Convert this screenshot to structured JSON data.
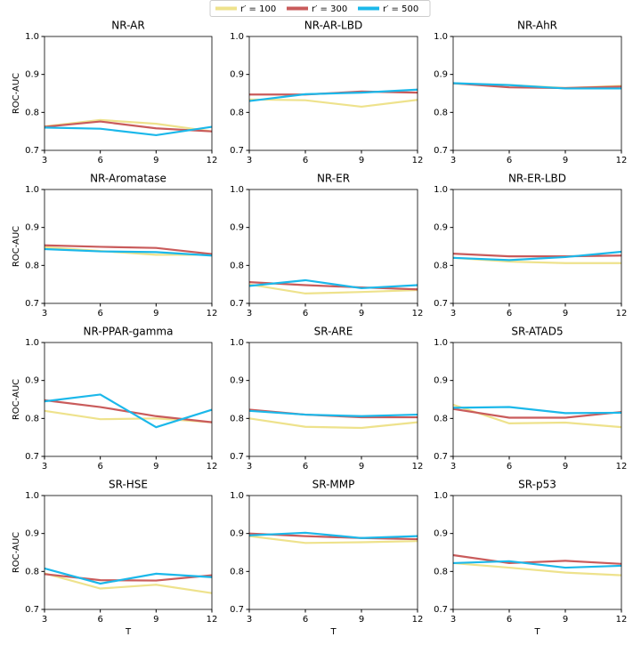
{
  "chart_data": [
    {
      "type": "line",
      "title": "NR-AR",
      "ylabel": "ROC-AUC",
      "x": [
        3,
        6,
        9,
        12
      ],
      "xlim": [
        3,
        12
      ],
      "xticks": [
        3,
        6,
        9,
        12
      ],
      "ylim": [
        0.7,
        1.0
      ],
      "yticks": [
        0.7,
        0.8,
        0.9,
        {
          "value": 1.0,
          "label": "1.0"
        }
      ],
      "series": [
        {
          "name": "r′ = 100",
          "color": "#eee28c",
          "values": [
            0.763,
            0.78,
            0.77,
            0.75
          ]
        },
        {
          "name": "r′ = 300",
          "color": "#c95b5b",
          "values": [
            0.762,
            0.776,
            0.758,
            0.75
          ]
        },
        {
          "name": "r′ = 500",
          "color": "#1bb8ea",
          "values": [
            0.76,
            0.757,
            0.74,
            0.762
          ]
        }
      ]
    },
    {
      "type": "line",
      "title": "NR-AR-LBD",
      "x": [
        3,
        6,
        9,
        12
      ],
      "xlim": [
        3,
        12
      ],
      "xticks": [
        3,
        6,
        9,
        12
      ],
      "ylim": [
        0.7,
        1.0
      ],
      "yticks": [
        0.7,
        0.8,
        0.9,
        {
          "value": 1.0,
          "label": "1.0"
        }
      ],
      "series": [
        {
          "name": "r′ = 100",
          "color": "#eee28c",
          "values": [
            0.834,
            0.832,
            0.815,
            0.833
          ]
        },
        {
          "name": "r′ = 300",
          "color": "#c95b5b",
          "values": [
            0.847,
            0.847,
            0.855,
            0.852
          ]
        },
        {
          "name": "r′ = 500",
          "color": "#1bb8ea",
          "values": [
            0.83,
            0.848,
            0.852,
            0.86
          ]
        }
      ]
    },
    {
      "type": "line",
      "title": "NR-AhR",
      "x": [
        3,
        6,
        9,
        12
      ],
      "xlim": [
        3,
        12
      ],
      "xticks": [
        3,
        6,
        9,
        12
      ],
      "ylim": [
        0.7,
        1.0
      ],
      "yticks": [
        0.7,
        0.8,
        0.9,
        {
          "value": 1.0,
          "label": "1.0"
        }
      ],
      "series": [
        {
          "name": "r′ = 100",
          "color": "#eee28c",
          "values": [
            0.876,
            0.872,
            0.864,
            0.87
          ]
        },
        {
          "name": "r′ = 300",
          "color": "#c95b5b",
          "values": [
            0.877,
            0.866,
            0.864,
            0.868
          ]
        },
        {
          "name": "r′ = 500",
          "color": "#1bb8ea",
          "values": [
            0.877,
            0.872,
            0.863,
            0.863
          ]
        }
      ]
    },
    {
      "type": "line",
      "title": "NR-Aromatase",
      "ylabel": "ROC-AUC",
      "x": [
        3,
        6,
        9,
        12
      ],
      "xlim": [
        3,
        12
      ],
      "xticks": [
        3,
        6,
        9,
        12
      ],
      "ylim": [
        0.7,
        1.0
      ],
      "yticks": [
        0.7,
        0.8,
        0.9,
        {
          "value": 1.0,
          "label": "1.0"
        }
      ],
      "series": [
        {
          "name": "r′ = 100",
          "color": "#eee28c",
          "values": [
            0.848,
            0.838,
            0.828,
            0.828
          ]
        },
        {
          "name": "r′ = 300",
          "color": "#c95b5b",
          "values": [
            0.853,
            0.849,
            0.846,
            0.83
          ]
        },
        {
          "name": "r′ = 500",
          "color": "#1bb8ea",
          "values": [
            0.843,
            0.837,
            0.835,
            0.826
          ]
        }
      ]
    },
    {
      "type": "line",
      "title": "NR-ER",
      "x": [
        3,
        6,
        9,
        12
      ],
      "xlim": [
        3,
        12
      ],
      "xticks": [
        3,
        6,
        9,
        12
      ],
      "ylim": [
        0.7,
        1.0
      ],
      "yticks": [
        0.7,
        0.8,
        0.9,
        {
          "value": 1.0,
          "label": "1.0"
        }
      ],
      "series": [
        {
          "name": "r′ = 100",
          "color": "#eee28c",
          "values": [
            0.75,
            0.726,
            0.73,
            0.735
          ]
        },
        {
          "name": "r′ = 300",
          "color": "#c95b5b",
          "values": [
            0.756,
            0.748,
            0.742,
            0.737
          ]
        },
        {
          "name": "r′ = 500",
          "color": "#1bb8ea",
          "values": [
            0.746,
            0.761,
            0.74,
            0.748
          ]
        }
      ]
    },
    {
      "type": "line",
      "title": "NR-ER-LBD",
      "x": [
        3,
        6,
        9,
        12
      ],
      "xlim": [
        3,
        12
      ],
      "xticks": [
        3,
        6,
        9,
        12
      ],
      "ylim": [
        0.7,
        1.0
      ],
      "yticks": [
        0.7,
        0.8,
        0.9,
        {
          "value": 1.0,
          "label": "1.0"
        }
      ],
      "series": [
        {
          "name": "r′ = 100",
          "color": "#eee28c",
          "values": [
            0.82,
            0.81,
            0.806,
            0.806
          ]
        },
        {
          "name": "r′ = 300",
          "color": "#c95b5b",
          "values": [
            0.831,
            0.824,
            0.824,
            0.826
          ]
        },
        {
          "name": "r′ = 500",
          "color": "#1bb8ea",
          "values": [
            0.82,
            0.814,
            0.822,
            0.836
          ]
        }
      ]
    },
    {
      "type": "line",
      "title": "NR-PPAR-gamma",
      "ylabel": "ROC-AUC",
      "x": [
        3,
        6,
        9,
        12
      ],
      "xlim": [
        3,
        12
      ],
      "xticks": [
        3,
        6,
        9,
        12
      ],
      "ylim": [
        0.7,
        1.0
      ],
      "yticks": [
        0.7,
        0.8,
        0.9,
        {
          "value": 1.0,
          "label": "1.0"
        }
      ],
      "series": [
        {
          "name": "r′ = 100",
          "color": "#eee28c",
          "values": [
            0.82,
            0.798,
            0.8,
            0.79
          ]
        },
        {
          "name": "r′ = 300",
          "color": "#c95b5b",
          "values": [
            0.848,
            0.83,
            0.806,
            0.79
          ]
        },
        {
          "name": "r′ = 500",
          "color": "#1bb8ea",
          "values": [
            0.845,
            0.863,
            0.777,
            0.823
          ]
        }
      ]
    },
    {
      "type": "line",
      "title": "SR-ARE",
      "x": [
        3,
        6,
        9,
        12
      ],
      "xlim": [
        3,
        12
      ],
      "xticks": [
        3,
        6,
        9,
        12
      ],
      "ylim": [
        0.7,
        1.0
      ],
      "yticks": [
        0.7,
        0.8,
        0.9,
        {
          "value": 1.0,
          "label": "1.0"
        }
      ],
      "series": [
        {
          "name": "r′ = 100",
          "color": "#eee28c",
          "values": [
            0.8,
            0.778,
            0.775,
            0.79
          ]
        },
        {
          "name": "r′ = 300",
          "color": "#c95b5b",
          "values": [
            0.823,
            0.81,
            0.803,
            0.803
          ]
        },
        {
          "name": "r′ = 500",
          "color": "#1bb8ea",
          "values": [
            0.82,
            0.81,
            0.806,
            0.81
          ]
        }
      ]
    },
    {
      "type": "line",
      "title": "SR-ATAD5",
      "x": [
        3,
        6,
        9,
        12
      ],
      "xlim": [
        3,
        12
      ],
      "xticks": [
        3,
        6,
        9,
        12
      ],
      "ylim": [
        0.7,
        1.0
      ],
      "yticks": [
        0.7,
        0.8,
        0.9,
        {
          "value": 1.0,
          "label": "1.0"
        }
      ],
      "series": [
        {
          "name": "r′ = 100",
          "color": "#eee28c",
          "values": [
            0.836,
            0.787,
            0.789,
            0.777
          ]
        },
        {
          "name": "r′ = 300",
          "color": "#c95b5b",
          "values": [
            0.825,
            0.802,
            0.802,
            0.817
          ]
        },
        {
          "name": "r′ = 500",
          "color": "#1bb8ea",
          "values": [
            0.828,
            0.83,
            0.814,
            0.815
          ]
        }
      ]
    },
    {
      "type": "line",
      "title": "SR-HSE",
      "ylabel": "ROC-AUC",
      "xlabel": "T",
      "x": [
        3,
        6,
        9,
        12
      ],
      "xlim": [
        3,
        12
      ],
      "xticks": [
        3,
        6,
        9,
        12
      ],
      "ylim": [
        0.7,
        1.0
      ],
      "yticks": [
        0.7,
        0.8,
        0.9,
        {
          "value": 1.0,
          "label": "1.0"
        }
      ],
      "series": [
        {
          "name": "r′ = 100",
          "color": "#eee28c",
          "values": [
            0.795,
            0.755,
            0.765,
            0.743
          ]
        },
        {
          "name": "r′ = 300",
          "color": "#c95b5b",
          "values": [
            0.793,
            0.777,
            0.776,
            0.79
          ]
        },
        {
          "name": "r′ = 500",
          "color": "#1bb8ea",
          "values": [
            0.808,
            0.768,
            0.794,
            0.785
          ]
        }
      ]
    },
    {
      "type": "line",
      "title": "SR-MMP",
      "xlabel": "T",
      "x": [
        3,
        6,
        9,
        12
      ],
      "xlim": [
        3,
        12
      ],
      "xticks": [
        3,
        6,
        9,
        12
      ],
      "ylim": [
        0.7,
        1.0
      ],
      "yticks": [
        0.7,
        0.8,
        0.9,
        {
          "value": 1.0,
          "label": "1.0"
        }
      ],
      "series": [
        {
          "name": "r′ = 100",
          "color": "#eee28c",
          "values": [
            0.893,
            0.875,
            0.877,
            0.88
          ]
        },
        {
          "name": "r′ = 300",
          "color": "#c95b5b",
          "values": [
            0.9,
            0.893,
            0.888,
            0.885
          ]
        },
        {
          "name": "r′ = 500",
          "color": "#1bb8ea",
          "values": [
            0.895,
            0.902,
            0.888,
            0.893
          ]
        }
      ]
    },
    {
      "type": "line",
      "title": "SR-p53",
      "xlabel": "T",
      "x": [
        3,
        6,
        9,
        12
      ],
      "xlim": [
        3,
        12
      ],
      "xticks": [
        3,
        6,
        9,
        12
      ],
      "ylim": [
        0.7,
        1.0
      ],
      "yticks": [
        0.7,
        0.8,
        0.9,
        {
          "value": 1.0,
          "label": "1.0"
        }
      ],
      "series": [
        {
          "name": "r′ = 100",
          "color": "#eee28c",
          "values": [
            0.822,
            0.81,
            0.797,
            0.79
          ]
        },
        {
          "name": "r′ = 300",
          "color": "#c95b5b",
          "values": [
            0.843,
            0.822,
            0.828,
            0.82
          ]
        },
        {
          "name": "r′ = 500",
          "color": "#1bb8ea",
          "values": [
            0.822,
            0.827,
            0.81,
            0.815
          ]
        }
      ]
    }
  ]
}
